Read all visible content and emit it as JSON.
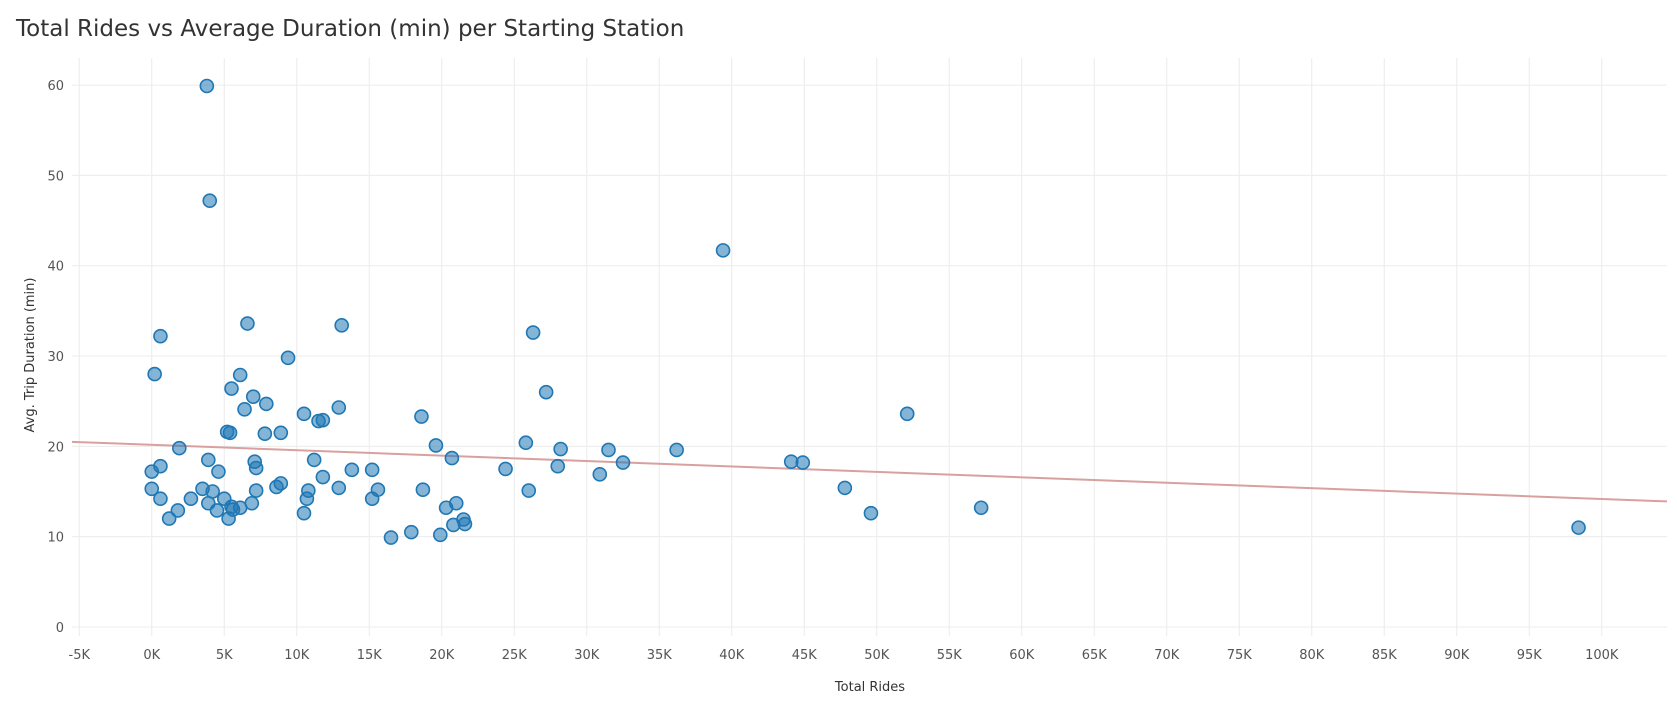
{
  "chart_data": {
    "type": "scatter",
    "title": "Total Rides vs Average Duration (min) per Starting Station",
    "xlabel": "Total Rides",
    "ylabel": "Avg. Trip Duration (min)",
    "xlim": [
      -5500,
      104500
    ],
    "ylim": [
      -1,
      63
    ],
    "x_ticks": [
      -5000,
      0,
      5000,
      10000,
      15000,
      20000,
      25000,
      30000,
      35000,
      40000,
      45000,
      50000,
      55000,
      60000,
      65000,
      70000,
      75000,
      80000,
      85000,
      90000,
      95000,
      100000
    ],
    "x_tick_labels": [
      "-5K",
      "0K",
      "5K",
      "10K",
      "15K",
      "20K",
      "25K",
      "30K",
      "35K",
      "40K",
      "45K",
      "50K",
      "55K",
      "60K",
      "65K",
      "70K",
      "75K",
      "80K",
      "85K",
      "90K",
      "95K",
      "100K"
    ],
    "y_ticks": [
      0,
      10,
      20,
      30,
      40,
      50,
      60
    ],
    "y_tick_labels": [
      "0",
      "10",
      "20",
      "30",
      "40",
      "50",
      "60"
    ],
    "grid": true,
    "series": [
      {
        "color": "#1f77b4",
        "points": [
          [
            3800,
            59.9
          ],
          [
            4000,
            47.2
          ],
          [
            39400,
            41.7
          ],
          [
            6600,
            33.6
          ],
          [
            13100,
            33.4
          ],
          [
            600,
            32.2
          ],
          [
            26300,
            32.6
          ],
          [
            9400,
            29.8
          ],
          [
            200,
            28.0
          ],
          [
            6100,
            27.9
          ],
          [
            5500,
            26.4
          ],
          [
            7000,
            25.5
          ],
          [
            27200,
            26.0
          ],
          [
            7900,
            24.7
          ],
          [
            6400,
            24.1
          ],
          [
            12900,
            24.3
          ],
          [
            52100,
            23.6
          ],
          [
            10500,
            23.6
          ],
          [
            18600,
            23.3
          ],
          [
            11500,
            22.8
          ],
          [
            11800,
            22.9
          ],
          [
            5200,
            21.6
          ],
          [
            5400,
            21.5
          ],
          [
            7800,
            21.4
          ],
          [
            8900,
            21.5
          ],
          [
            1900,
            19.8
          ],
          [
            19600,
            20.1
          ],
          [
            25800,
            20.4
          ],
          [
            28200,
            19.7
          ],
          [
            31500,
            19.6
          ],
          [
            36200,
            19.6
          ],
          [
            20700,
            18.7
          ],
          [
            3900,
            18.5
          ],
          [
            7100,
            18.3
          ],
          [
            11200,
            18.5
          ],
          [
            44100,
            18.3
          ],
          [
            44900,
            18.2
          ],
          [
            32500,
            18.2
          ],
          [
            600,
            17.8
          ],
          [
            7200,
            17.6
          ],
          [
            28000,
            17.8
          ],
          [
            0,
            17.2
          ],
          [
            4600,
            17.2
          ],
          [
            13800,
            17.4
          ],
          [
            15200,
            17.4
          ],
          [
            24400,
            17.5
          ],
          [
            30900,
            16.9
          ],
          [
            11800,
            16.6
          ],
          [
            8900,
            15.9
          ],
          [
            8600,
            15.5
          ],
          [
            0,
            15.3
          ],
          [
            3500,
            15.3
          ],
          [
            4200,
            15.0
          ],
          [
            7200,
            15.1
          ],
          [
            10800,
            15.1
          ],
          [
            12900,
            15.4
          ],
          [
            15600,
            15.2
          ],
          [
            18700,
            15.2
          ],
          [
            26000,
            15.1
          ],
          [
            47800,
            15.4
          ],
          [
            15200,
            14.2
          ],
          [
            600,
            14.2
          ],
          [
            2700,
            14.2
          ],
          [
            5000,
            14.2
          ],
          [
            10700,
            14.2
          ],
          [
            3900,
            13.7
          ],
          [
            6900,
            13.7
          ],
          [
            21000,
            13.7
          ],
          [
            5600,
            13.0
          ],
          [
            6100,
            13.2
          ],
          [
            20300,
            13.2
          ],
          [
            57200,
            13.2
          ],
          [
            1800,
            12.9
          ],
          [
            4500,
            12.9
          ],
          [
            10500,
            12.6
          ],
          [
            49600,
            12.6
          ],
          [
            1200,
            12.0
          ],
          [
            5300,
            12.0
          ],
          [
            21500,
            11.9
          ],
          [
            20800,
            11.3
          ],
          [
            21600,
            11.4
          ],
          [
            98400,
            11.0
          ],
          [
            17900,
            10.5
          ],
          [
            16500,
            9.9
          ],
          [
            19900,
            10.2
          ],
          [
            5500,
            13.3
          ]
        ]
      }
    ],
    "trendline": {
      "color": "#d9a0a0",
      "x": [
        -5500,
        104500
      ],
      "y": [
        20.5,
        13.9
      ]
    }
  }
}
